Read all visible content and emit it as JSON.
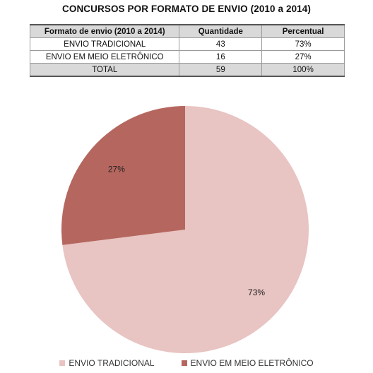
{
  "title": "CONCURSOS POR FORMATO DE ENVIO (2010 a 2014)",
  "table": {
    "headers": [
      "Formato de envio (2010 a 2014)",
      "Quantidade",
      "Percentual"
    ],
    "rows": [
      [
        "ENVIO TRADICIONAL",
        "43",
        "73%"
      ],
      [
        "ENVIO EM MEIO ELETRÔNICO",
        "16",
        "27%"
      ]
    ],
    "total": [
      "TOTAL",
      "59",
      "100%"
    ]
  },
  "chart_data": {
    "type": "pie",
    "categories": [
      "ENVIO TRADICIONAL",
      "ENVIO EM MEIO ELETRÔNICO"
    ],
    "values": [
      73,
      27
    ],
    "value_labels": [
      "73%",
      "27%"
    ],
    "colors": [
      "#e8c4c2",
      "#b5675f"
    ],
    "start": "12 o'clock, clockwise",
    "legend_position": "bottom"
  }
}
